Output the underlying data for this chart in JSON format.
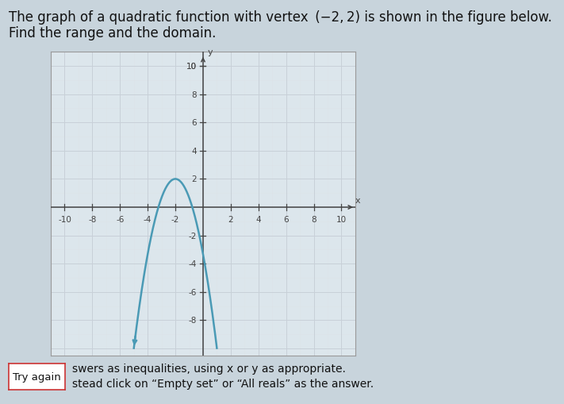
{
  "title_line1": "The graph of a quadratic function with vertex  (−2, 2) is shown in the figure below.",
  "title_line2": "Find the range and the domain.",
  "vertex": [
    -2,
    2
  ],
  "a_val": -1.333,
  "x_range": [
    -11,
    11
  ],
  "y_range": [
    -10.5,
    11
  ],
  "x_ticks": [
    -10,
    -8,
    -6,
    -4,
    -2,
    2,
    4,
    6,
    8,
    10
  ],
  "y_ticks": [
    -8,
    -6,
    -4,
    -2,
    2,
    4,
    6,
    8,
    10
  ],
  "curve_color": "#4a9ab5",
  "curve_linewidth": 1.8,
  "grid_color": "#c8d0d8",
  "grid_minor_color": "#dce3e8",
  "background_color": "#c8d4dc",
  "plot_bg_color": "#dce6ec",
  "axis_color": "#444444",
  "text_color": "#111111",
  "border_color": "#999999",
  "bottom_text1": "swers as inequalities, using x or y as appropriate.",
  "bottom_text2": "stead click on “Empty set” or “All reals” as the answer.",
  "try_again_label": "Try again",
  "title_fontsize": 12,
  "tick_label_fontsize": 7.5
}
